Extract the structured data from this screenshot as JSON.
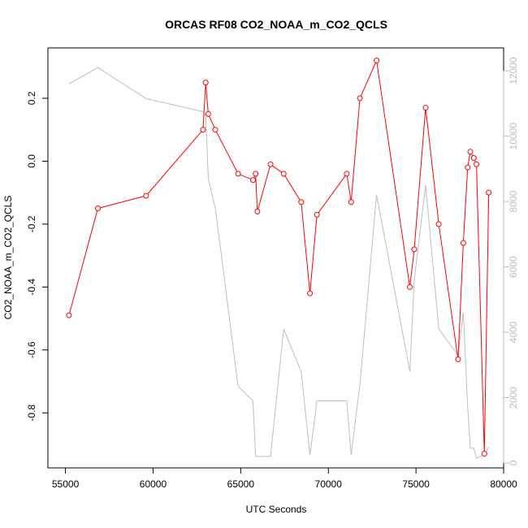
{
  "chart_data": {
    "type": "line",
    "title": "ORCAS RF08 CO2_NOAA_m_CO2_QCLS",
    "xlabel": "UTC Seconds",
    "ylabel": "CO2_NOAA_m_CO2_QCLS",
    "y2label": "",
    "xlim": [
      54000,
      80000
    ],
    "ylim": [
      -0.975,
      0.36
    ],
    "y2lim": [
      -150,
      12700
    ],
    "x_ticks": [
      55000,
      60000,
      65000,
      70000,
      75000,
      80000
    ],
    "y_ticks": [
      -0.8,
      -0.6,
      -0.4,
      -0.2,
      0.0,
      0.2
    ],
    "y_tick_labels": [
      "-0.8",
      "-0.6",
      "-0.4",
      "-0.2",
      "0.0",
      "0.2"
    ],
    "y2_ticks": [
      0,
      2000,
      4000,
      6000,
      8000,
      10000,
      12000
    ],
    "grid": false,
    "legend": "none",
    "series": [
      {
        "color": "#ff0000",
        "axis": "left",
        "marker": "open-circle",
        "x": [
          55200,
          56850,
          59600,
          62850,
          63000,
          63150,
          63550,
          64850,
          65700,
          65850,
          65950,
          66700,
          67450,
          68450,
          68950,
          69350,
          71050,
          71300,
          71800,
          72750,
          74650,
          74900,
          75550,
          76300,
          77400,
          77700,
          77950,
          78100,
          78300,
          78450,
          78900,
          79150
        ],
        "y": [
          -0.49,
          -0.15,
          -0.11,
          0.1,
          0.25,
          0.15,
          0.1,
          -0.04,
          -0.06,
          -0.04,
          -0.16,
          -0.01,
          -0.04,
          -0.13,
          -0.42,
          -0.17,
          -0.04,
          -0.13,
          0.2,
          0.32,
          -0.4,
          -0.28,
          0.17,
          -0.2,
          -0.63,
          -0.26,
          -0.02,
          0.03,
          0.01,
          -0.01,
          -0.93,
          -0.1
        ]
      },
      {
        "color": "#bdbdbd",
        "axis": "right",
        "marker": "none",
        "x": [
          55200,
          56850,
          59600,
          62850,
          63000,
          63150,
          63550,
          64850,
          65700,
          65850,
          65950,
          66700,
          67450,
          68450,
          68950,
          69350,
          71050,
          71300,
          71800,
          72750,
          74650,
          74900,
          75550,
          76300,
          77400,
          77700,
          77950,
          78100,
          78300,
          78450,
          78900,
          79150
        ],
        "y": [
          11600,
          12100,
          11150,
          10750,
          10650,
          8700,
          7800,
          2350,
          1900,
          200,
          200,
          200,
          4100,
          2800,
          250,
          1900,
          1900,
          250,
          2400,
          8200,
          2800,
          5600,
          8500,
          4100,
          3300,
          4600,
          1700,
          450,
          450,
          150,
          250,
          500
        ]
      }
    ]
  }
}
